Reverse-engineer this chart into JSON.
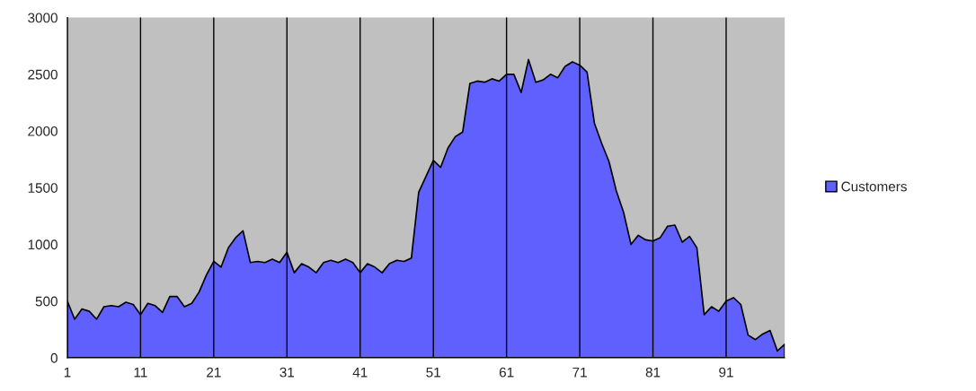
{
  "chart_data": {
    "type": "area",
    "x": [
      1,
      2,
      3,
      4,
      5,
      6,
      7,
      8,
      9,
      10,
      11,
      12,
      13,
      14,
      15,
      16,
      17,
      18,
      19,
      20,
      21,
      22,
      23,
      24,
      25,
      26,
      27,
      28,
      29,
      30,
      31,
      32,
      33,
      34,
      35,
      36,
      37,
      38,
      39,
      40,
      41,
      42,
      43,
      44,
      45,
      46,
      47,
      48,
      49,
      50,
      51,
      52,
      53,
      54,
      55,
      56,
      57,
      58,
      59,
      60,
      61,
      62,
      63,
      64,
      65,
      66,
      67,
      68,
      69,
      70,
      71,
      72,
      73,
      74,
      75,
      76,
      77,
      78,
      79,
      80,
      81,
      82,
      83,
      84,
      85,
      86,
      87,
      88,
      89,
      90,
      91,
      92,
      93,
      94,
      95,
      96,
      97,
      98,
      99
    ],
    "series": [
      {
        "name": "Customers",
        "color": "#6060ff",
        "values": [
          500,
          340,
          430,
          410,
          340,
          450,
          460,
          450,
          490,
          470,
          380,
          480,
          460,
          400,
          540,
          540,
          450,
          480,
          580,
          730,
          850,
          800,
          970,
          1060,
          1120,
          840,
          850,
          840,
          870,
          840,
          930,
          750,
          830,
          800,
          750,
          840,
          860,
          840,
          870,
          840,
          750,
          830,
          800,
          750,
          830,
          860,
          850,
          880,
          1460,
          1600,
          1740,
          1680,
          1850,
          1950,
          1990,
          2420,
          2440,
          2430,
          2460,
          2440,
          2500,
          2500,
          2340,
          2630,
          2430,
          2450,
          2500,
          2470,
          2570,
          2610,
          2580,
          2520,
          2070,
          1890,
          1730,
          1470,
          1280,
          1000,
          1080,
          1040,
          1030,
          1060,
          1160,
          1170,
          1020,
          1070,
          970,
          380,
          450,
          410,
          500,
          530,
          470,
          200,
          160,
          210,
          240,
          60,
          120
        ]
      }
    ],
    "xlim": [
      1,
      99
    ],
    "xticks": [
      1,
      11,
      21,
      31,
      41,
      51,
      61,
      71,
      81,
      91
    ],
    "ylim": [
      0,
      3000
    ],
    "yticks": [
      0,
      500,
      1000,
      1500,
      2000,
      2500,
      3000
    ],
    "grid": "x",
    "legend": "right"
  }
}
